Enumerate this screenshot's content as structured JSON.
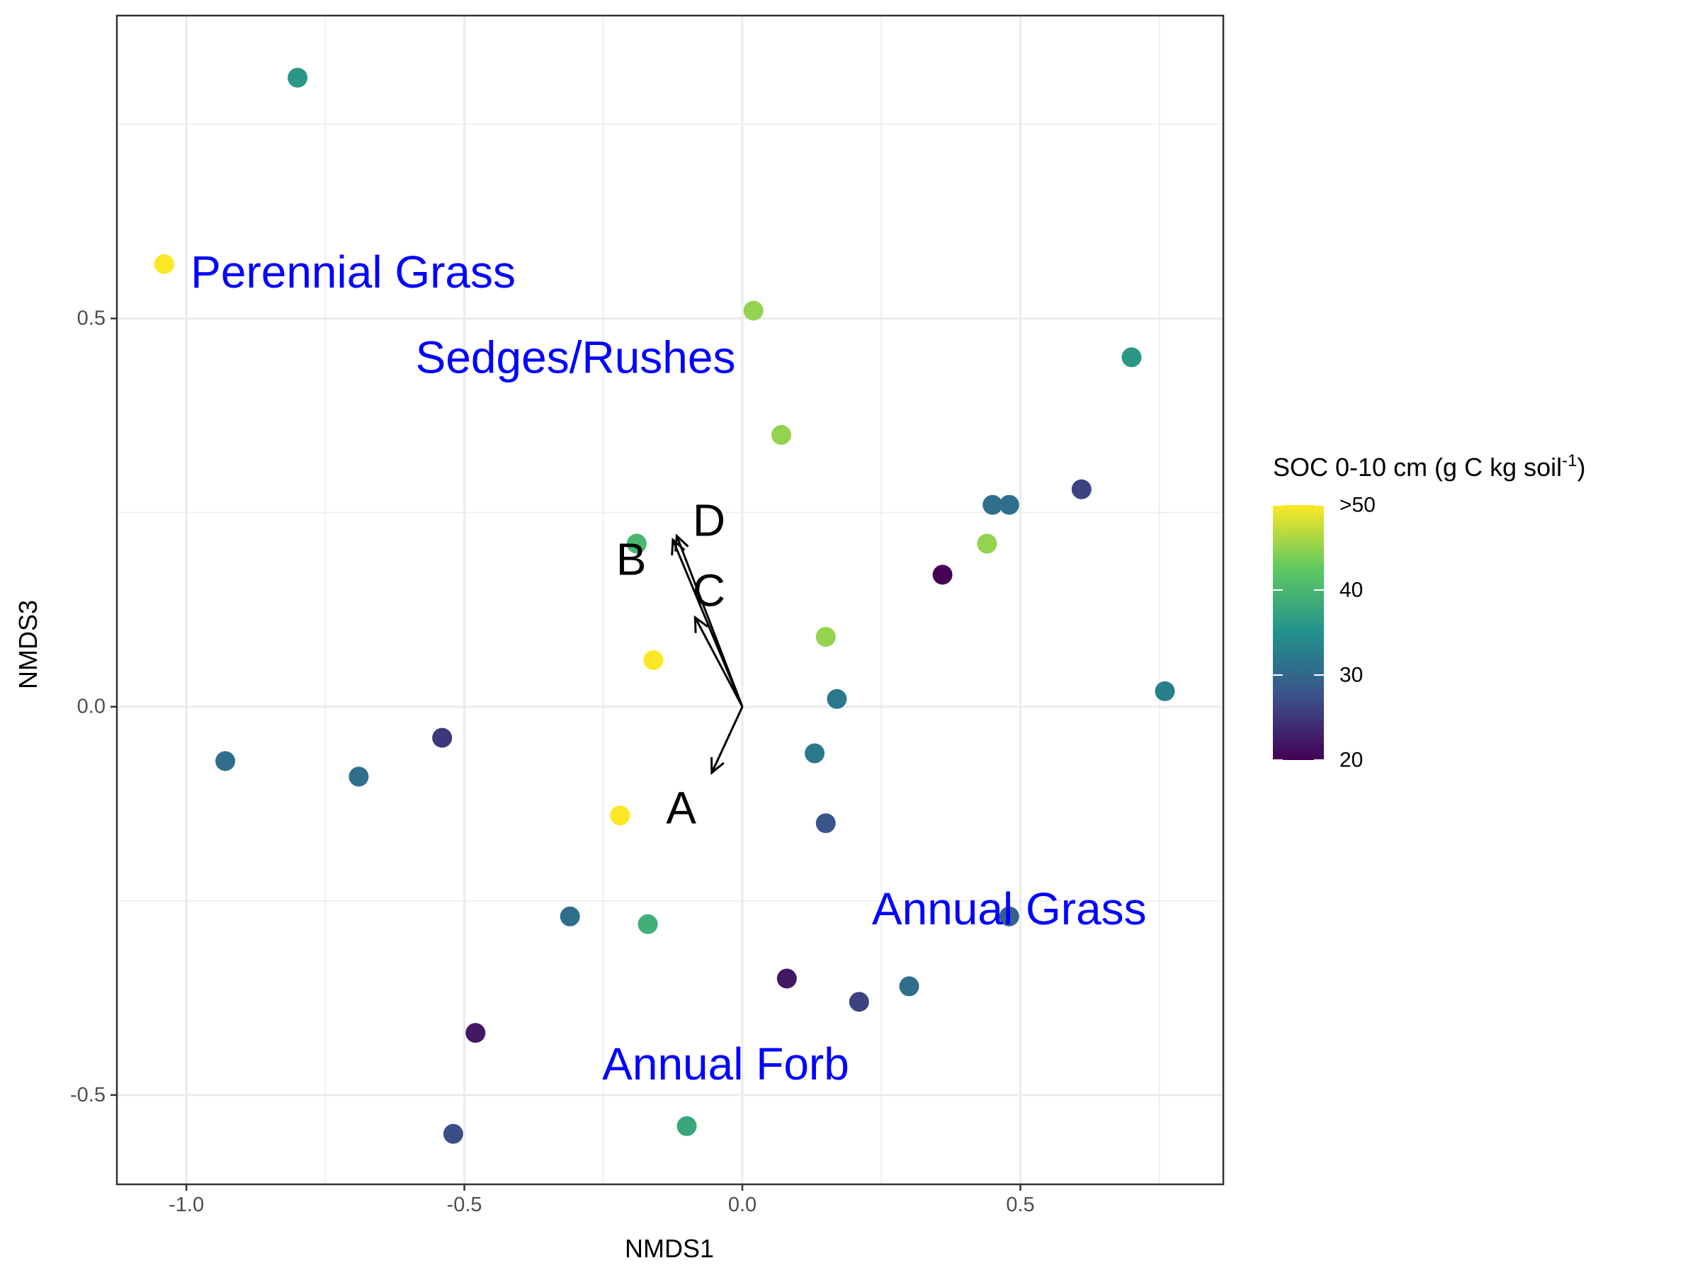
{
  "chart_data": {
    "type": "scatter",
    "xlabel": "NMDS1",
    "ylabel": "NMDS3",
    "xlim": [
      -1.125,
      0.865
    ],
    "ylim": [
      -0.615,
      0.89
    ],
    "x_ticks": [
      -1.0,
      -0.5,
      0.0,
      0.5
    ],
    "x_tick_labels": [
      "-1.0",
      "-0.5",
      "0.0",
      "0.5"
    ],
    "y_ticks": [
      -0.5,
      0.0,
      0.5
    ],
    "y_tick_labels": [
      "-0.5",
      "0.0",
      "0.5"
    ],
    "x_minor_ticks": [
      -0.75,
      -0.25,
      0.25,
      0.75
    ],
    "y_minor_ticks": [
      -0.25,
      0.25,
      0.75
    ],
    "grid": true,
    "point_color_variable": {
      "title_prefix": "SOC 0-10 cm (g C kg soil",
      "title_superscript": "-1",
      "title_suffix": ")",
      "range": [
        20,
        50
      ],
      "ticks": [
        20,
        30,
        40,
        50
      ],
      "tick_labels": [
        "20",
        "30",
        "40",
        ">50"
      ],
      "colors": [
        "#440154",
        "#3b528b",
        "#21918c",
        "#5ec962",
        "#fde725"
      ],
      "legend_placement": "right"
    },
    "points": [
      {
        "x": -0.8,
        "y": 0.81,
        "soc": 36
      },
      {
        "x": -1.04,
        "y": 0.57,
        "soc": 51
      },
      {
        "x": 0.02,
        "y": 0.51,
        "soc": 45
      },
      {
        "x": 0.7,
        "y": 0.45,
        "soc": 36
      },
      {
        "x": 0.07,
        "y": 0.35,
        "soc": 45
      },
      {
        "x": 0.61,
        "y": 0.28,
        "soc": 26
      },
      {
        "x": 0.45,
        "y": 0.26,
        "soc": 31
      },
      {
        "x": 0.48,
        "y": 0.26,
        "soc": 31
      },
      {
        "x": -0.19,
        "y": 0.21,
        "soc": 40
      },
      {
        "x": 0.44,
        "y": 0.21,
        "soc": 45
      },
      {
        "x": 0.36,
        "y": 0.17,
        "soc": 20
      },
      {
        "x": 0.15,
        "y": 0.09,
        "soc": 45
      },
      {
        "x": -0.16,
        "y": 0.06,
        "soc": 51
      },
      {
        "x": 0.17,
        "y": 0.01,
        "soc": 32
      },
      {
        "x": 0.76,
        "y": 0.02,
        "soc": 33
      },
      {
        "x": -0.54,
        "y": -0.04,
        "soc": 25
      },
      {
        "x": -0.93,
        "y": -0.07,
        "soc": 31
      },
      {
        "x": -0.69,
        "y": -0.09,
        "soc": 31
      },
      {
        "x": 0.13,
        "y": -0.06,
        "soc": 32
      },
      {
        "x": -0.22,
        "y": -0.14,
        "soc": 51
      },
      {
        "x": 0.15,
        "y": -0.15,
        "soc": 28
      },
      {
        "x": 0.48,
        "y": -0.27,
        "soc": 29
      },
      {
        "x": -0.31,
        "y": -0.27,
        "soc": 31
      },
      {
        "x": -0.17,
        "y": -0.28,
        "soc": 39
      },
      {
        "x": 0.08,
        "y": -0.35,
        "soc": 22
      },
      {
        "x": 0.3,
        "y": -0.36,
        "soc": 31
      },
      {
        "x": 0.21,
        "y": -0.38,
        "soc": 26
      },
      {
        "x": -0.48,
        "y": -0.42,
        "soc": 22
      },
      {
        "x": -0.52,
        "y": -0.55,
        "soc": 27
      },
      {
        "x": -0.1,
        "y": -0.54,
        "soc": 38
      }
    ],
    "vectors": [
      {
        "label": "A",
        "x": -0.055,
        "y": -0.085
      },
      {
        "label": "B",
        "x": -0.125,
        "y": 0.215
      },
      {
        "label": "C",
        "x": -0.085,
        "y": 0.115
      },
      {
        "label": "D",
        "x": -0.118,
        "y": 0.22
      }
    ],
    "vector_label_positions": [
      {
        "label": "A",
        "x": -0.11,
        "y": -0.13
      },
      {
        "label": "B",
        "x": -0.2,
        "y": 0.19
      },
      {
        "label": "C",
        "x": -0.06,
        "y": 0.15
      },
      {
        "label": "D",
        "x": -0.06,
        "y": 0.24
      }
    ],
    "group_labels": [
      {
        "text": "Perennial Grass",
        "x": -0.7,
        "y": 0.56
      },
      {
        "text": "Sedges/Rushes",
        "x": -0.3,
        "y": 0.45
      },
      {
        "text": "Annual Grass",
        "x": 0.48,
        "y": -0.26
      },
      {
        "text": "Annual Forb",
        "x": -0.03,
        "y": -0.46
      }
    ]
  }
}
